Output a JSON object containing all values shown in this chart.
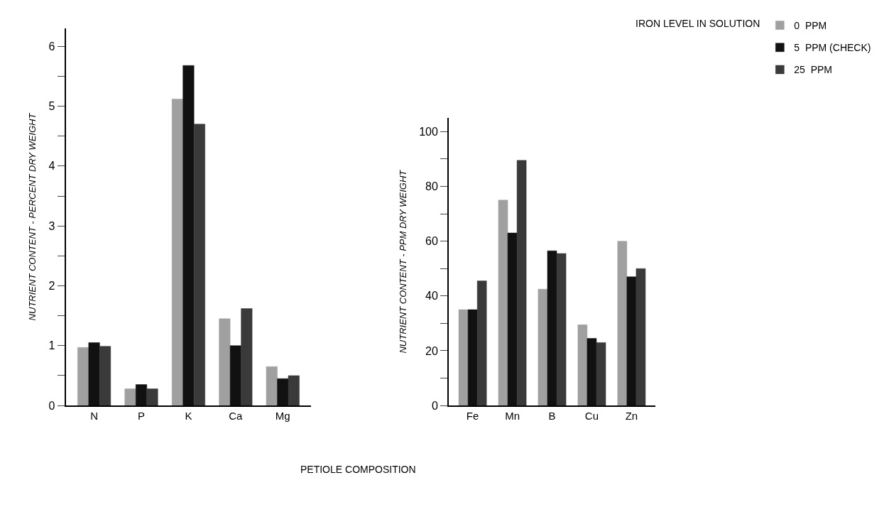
{
  "chart_data": [
    {
      "type": "bar",
      "ylabel": "NUTRIENT CONTENT - PERCENT DRY WEIGHT",
      "xlabel": "PETIOLE COMPOSITION",
      "legend_title": "IRON LEVEL IN SOLUTION",
      "categories": [
        "N",
        "P",
        "K",
        "Ca",
        "Mg"
      ],
      "series": [
        {
          "name": "0  PPM",
          "color": "#a0a0a0",
          "values": [
            0.97,
            0.28,
            5.12,
            1.45,
            0.65
          ]
        },
        {
          "name": "5  PPM (CHECK)",
          "color": "#111111",
          "values": [
            1.05,
            0.35,
            5.68,
            1.0,
            0.45
          ]
        },
        {
          "name": "25  PPM",
          "color": "#3a3a3a",
          "values": [
            0.99,
            0.28,
            4.7,
            1.62,
            0.5
          ]
        }
      ],
      "ylim": [
        0,
        6.3
      ],
      "yticks": [
        0,
        {
          "value": 0.5,
          "label": null
        },
        1,
        {
          "value": 1.5,
          "label": null
        },
        2,
        {
          "value": 2.5,
          "label": null
        },
        3,
        {
          "value": 3.5,
          "label": null
        },
        4,
        {
          "value": 4.5,
          "label": null
        },
        5,
        {
          "value": 5.5,
          "label": null
        },
        6
      ],
      "legend": "top right"
    },
    {
      "type": "bar",
      "ylabel": "NUTRIENT CONTENT - PPM DRY WEIGHT",
      "categories": [
        "Fe",
        "Mn",
        "B",
        "Cu",
        "Zn"
      ],
      "series": [
        {
          "color": "#a0a0a0",
          "values": [
            35,
            75,
            42.5,
            29.5,
            60
          ]
        },
        {
          "color": "#111111",
          "values": [
            35,
            63,
            56.5,
            24.5,
            47
          ]
        },
        {
          "color": "#3a3a3a",
          "values": [
            45.5,
            89.5,
            55.5,
            23,
            50
          ]
        }
      ],
      "ylim": [
        0,
        105
      ],
      "yticks": [
        0,
        {
          "value": 10,
          "label": null
        },
        20,
        {
          "value": 30,
          "label": null
        },
        40,
        {
          "value": 50,
          "label": null
        },
        60,
        {
          "value": 70,
          "label": null
        },
        80,
        {
          "value": 90,
          "label": null
        },
        100
      ]
    }
  ]
}
